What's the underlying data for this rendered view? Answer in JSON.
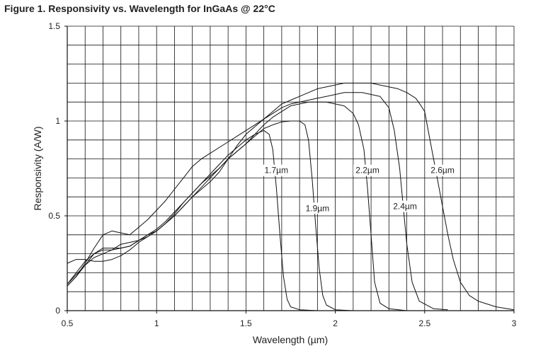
{
  "figure_title": "Figure 1.  Responsivity vs. Wavelength for InGaAs @ 22°C",
  "colors": {
    "line": "#111111",
    "grid": "#111111",
    "text": "#222222",
    "background": "#ffffff"
  },
  "chart_data": {
    "type": "line",
    "title": "Figure 1.  Responsivity vs. Wavelength for InGaAs @ 22°C",
    "xlabel": "Wavelength (µm)",
    "ylabel": "Responsivity (A/W)",
    "xlim": [
      0.5,
      3
    ],
    "ylim": [
      0,
      1.5
    ],
    "x_ticks": [
      0.5,
      1,
      1.5,
      2,
      2.5,
      3
    ],
    "x_tick_labels": [
      "0.5",
      "1",
      "1.5",
      "2",
      "2.5",
      "3"
    ],
    "y_ticks": [
      0,
      0.5,
      1,
      1.5
    ],
    "y_tick_labels": [
      "0",
      "0.5",
      "1",
      "1.5"
    ],
    "grid": true,
    "grid_x_step": 0.1,
    "grid_y_step": 0.1,
    "legend": "none",
    "series": [
      {
        "name": "1.7µm",
        "values": [
          [
            0.5,
            0.14
          ],
          [
            0.55,
            0.2
          ],
          [
            0.6,
            0.26
          ],
          [
            0.65,
            0.3
          ],
          [
            0.7,
            0.33
          ],
          [
            0.75,
            0.33
          ],
          [
            0.8,
            0.33
          ],
          [
            0.85,
            0.34
          ],
          [
            0.9,
            0.37
          ],
          [
            0.95,
            0.4
          ],
          [
            1.0,
            0.42
          ],
          [
            1.05,
            0.46
          ],
          [
            1.1,
            0.51
          ],
          [
            1.15,
            0.57
          ],
          [
            1.2,
            0.62
          ],
          [
            1.25,
            0.67
          ],
          [
            1.3,
            0.72
          ],
          [
            1.35,
            0.77
          ],
          [
            1.4,
            0.82
          ],
          [
            1.45,
            0.86
          ],
          [
            1.5,
            0.9
          ],
          [
            1.55,
            0.93
          ],
          [
            1.6,
            0.95
          ],
          [
            1.63,
            0.93
          ],
          [
            1.65,
            0.85
          ],
          [
            1.67,
            0.65
          ],
          [
            1.69,
            0.4
          ],
          [
            1.71,
            0.18
          ],
          [
            1.73,
            0.06
          ],
          [
            1.75,
            0.02
          ],
          [
            1.8,
            0.005
          ],
          [
            1.9,
            0.0
          ]
        ]
      },
      {
        "name": "1.9µm",
        "values": [
          [
            0.5,
            0.13
          ],
          [
            0.55,
            0.18
          ],
          [
            0.6,
            0.24
          ],
          [
            0.65,
            0.3
          ],
          [
            0.7,
            0.32
          ],
          [
            0.75,
            0.32
          ],
          [
            0.8,
            0.35
          ],
          [
            0.85,
            0.36
          ],
          [
            0.9,
            0.37
          ],
          [
            0.95,
            0.39
          ],
          [
            1.0,
            0.42
          ],
          [
            1.05,
            0.46
          ],
          [
            1.1,
            0.5
          ],
          [
            1.15,
            0.55
          ],
          [
            1.2,
            0.6
          ],
          [
            1.25,
            0.65
          ],
          [
            1.3,
            0.7
          ],
          [
            1.35,
            0.75
          ],
          [
            1.4,
            0.8
          ],
          [
            1.45,
            0.84
          ],
          [
            1.5,
            0.88
          ],
          [
            1.55,
            0.92
          ],
          [
            1.6,
            0.96
          ],
          [
            1.65,
            0.98
          ],
          [
            1.7,
            0.995
          ],
          [
            1.75,
            1.0
          ],
          [
            1.8,
            1.0
          ],
          [
            1.83,
            0.98
          ],
          [
            1.85,
            0.9
          ],
          [
            1.87,
            0.7
          ],
          [
            1.89,
            0.45
          ],
          [
            1.91,
            0.22
          ],
          [
            1.93,
            0.08
          ],
          [
            1.95,
            0.03
          ],
          [
            2.0,
            0.005
          ],
          [
            2.1,
            0.0
          ]
        ]
      },
      {
        "name": "2.2µm",
        "values": [
          [
            0.5,
            0.14
          ],
          [
            0.55,
            0.19
          ],
          [
            0.6,
            0.24
          ],
          [
            0.65,
            0.28
          ],
          [
            0.7,
            0.3
          ],
          [
            0.75,
            0.32
          ],
          [
            0.8,
            0.33
          ],
          [
            0.85,
            0.34
          ],
          [
            0.9,
            0.37
          ],
          [
            0.95,
            0.4
          ],
          [
            1.0,
            0.43
          ],
          [
            1.05,
            0.47
          ],
          [
            1.1,
            0.52
          ],
          [
            1.15,
            0.57
          ],
          [
            1.2,
            0.62
          ],
          [
            1.25,
            0.67
          ],
          [
            1.3,
            0.71
          ],
          [
            1.35,
            0.75
          ],
          [
            1.4,
            0.8
          ],
          [
            1.45,
            0.84
          ],
          [
            1.5,
            0.88
          ],
          [
            1.55,
            0.93
          ],
          [
            1.6,
            0.98
          ],
          [
            1.65,
            1.02
          ],
          [
            1.7,
            1.05
          ],
          [
            1.75,
            1.08
          ],
          [
            1.8,
            1.09
          ],
          [
            1.85,
            1.1
          ],
          [
            1.9,
            1.1
          ],
          [
            1.95,
            1.1
          ],
          [
            2.0,
            1.09
          ],
          [
            2.05,
            1.08
          ],
          [
            2.1,
            1.04
          ],
          [
            2.13,
            0.98
          ],
          [
            2.16,
            0.85
          ],
          [
            2.18,
            0.65
          ],
          [
            2.2,
            0.4
          ],
          [
            2.22,
            0.15
          ],
          [
            2.25,
            0.04
          ],
          [
            2.3,
            0.01
          ],
          [
            2.4,
            0.0
          ]
        ]
      },
      {
        "name": "2.4µm",
        "values": [
          [
            0.5,
            0.13
          ],
          [
            0.55,
            0.18
          ],
          [
            0.6,
            0.25
          ],
          [
            0.65,
            0.33
          ],
          [
            0.7,
            0.4
          ],
          [
            0.75,
            0.42
          ],
          [
            0.8,
            0.41
          ],
          [
            0.85,
            0.4
          ],
          [
            0.9,
            0.44
          ],
          [
            0.95,
            0.48
          ],
          [
            1.0,
            0.53
          ],
          [
            1.05,
            0.58
          ],
          [
            1.1,
            0.64
          ],
          [
            1.15,
            0.7
          ],
          [
            1.2,
            0.76
          ],
          [
            1.25,
            0.8
          ],
          [
            1.3,
            0.83
          ],
          [
            1.35,
            0.86
          ],
          [
            1.4,
            0.89
          ],
          [
            1.45,
            0.92
          ],
          [
            1.5,
            0.95
          ],
          [
            1.55,
            0.98
          ],
          [
            1.6,
            1.01
          ],
          [
            1.65,
            1.04
          ],
          [
            1.7,
            1.07
          ],
          [
            1.75,
            1.09
          ],
          [
            1.8,
            1.1
          ],
          [
            1.85,
            1.11
          ],
          [
            1.9,
            1.12
          ],
          [
            1.95,
            1.13
          ],
          [
            2.0,
            1.14
          ],
          [
            2.05,
            1.15
          ],
          [
            2.1,
            1.15
          ],
          [
            2.15,
            1.15
          ],
          [
            2.2,
            1.14
          ],
          [
            2.25,
            1.13
          ],
          [
            2.3,
            1.07
          ],
          [
            2.33,
            0.95
          ],
          [
            2.36,
            0.75
          ],
          [
            2.38,
            0.55
          ],
          [
            2.4,
            0.35
          ],
          [
            2.43,
            0.15
          ],
          [
            2.47,
            0.05
          ],
          [
            2.55,
            0.01
          ],
          [
            2.63,
            0.005
          ]
        ]
      },
      {
        "name": "2.6µm",
        "values": [
          [
            0.5,
            0.25
          ],
          [
            0.55,
            0.27
          ],
          [
            0.6,
            0.27
          ],
          [
            0.65,
            0.26
          ],
          [
            0.7,
            0.26
          ],
          [
            0.75,
            0.27
          ],
          [
            0.8,
            0.29
          ],
          [
            0.85,
            0.32
          ],
          [
            0.9,
            0.36
          ],
          [
            0.95,
            0.39
          ],
          [
            1.0,
            0.42
          ],
          [
            1.05,
            0.46
          ],
          [
            1.1,
            0.5
          ],
          [
            1.15,
            0.55
          ],
          [
            1.2,
            0.6
          ],
          [
            1.25,
            0.64
          ],
          [
            1.3,
            0.68
          ],
          [
            1.35,
            0.73
          ],
          [
            1.4,
            0.8
          ],
          [
            1.45,
            0.87
          ],
          [
            1.5,
            0.93
          ],
          [
            1.55,
            0.97
          ],
          [
            1.6,
            1.01
          ],
          [
            1.65,
            1.05
          ],
          [
            1.7,
            1.09
          ],
          [
            1.75,
            1.11
          ],
          [
            1.8,
            1.13
          ],
          [
            1.85,
            1.15
          ],
          [
            1.9,
            1.17
          ],
          [
            1.95,
            1.18
          ],
          [
            2.0,
            1.19
          ],
          [
            2.05,
            1.2
          ],
          [
            2.1,
            1.2
          ],
          [
            2.15,
            1.2
          ],
          [
            2.2,
            1.2
          ],
          [
            2.25,
            1.19
          ],
          [
            2.3,
            1.18
          ],
          [
            2.35,
            1.17
          ],
          [
            2.4,
            1.15
          ],
          [
            2.45,
            1.12
          ],
          [
            2.48,
            1.08
          ],
          [
            2.5,
            1.05
          ],
          [
            2.52,
            0.95
          ],
          [
            2.55,
            0.8
          ],
          [
            2.58,
            0.65
          ],
          [
            2.6,
            0.55
          ],
          [
            2.63,
            0.4
          ],
          [
            2.66,
            0.27
          ],
          [
            2.7,
            0.15
          ],
          [
            2.75,
            0.08
          ],
          [
            2.8,
            0.05
          ],
          [
            2.9,
            0.02
          ],
          [
            3.0,
            0.005
          ]
        ]
      }
    ],
    "annotations": [
      {
        "text": "1.7µm",
        "x": 1.67,
        "y": 0.74,
        "points_to": "1.7µm"
      },
      {
        "text": "1.9µm",
        "x": 1.9,
        "y": 0.54,
        "points_to": "1.9µm"
      },
      {
        "text": "2.2µm",
        "x": 2.18,
        "y": 0.74,
        "points_to": "2.2µm"
      },
      {
        "text": "2.4µm",
        "x": 2.39,
        "y": 0.55,
        "points_to": "2.4µm"
      },
      {
        "text": "2.6µm",
        "x": 2.6,
        "y": 0.74,
        "points_to": "2.6µm"
      }
    ]
  }
}
